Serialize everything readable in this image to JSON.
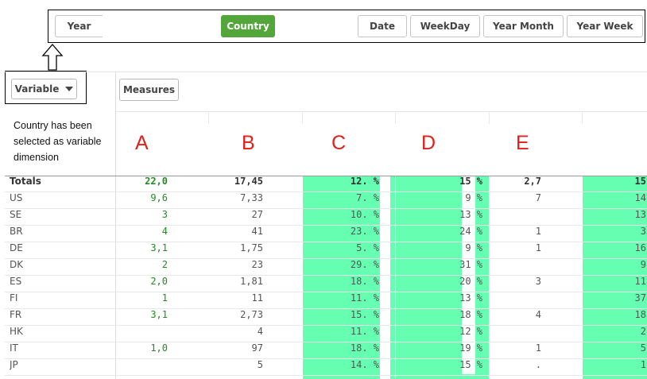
{
  "dimension_bar": {
    "buttons": [
      {
        "label": "Year",
        "active": false
      },
      {
        "label": "Country",
        "active": true
      },
      {
        "label": "Date",
        "active": false
      },
      {
        "label": "WeekDay",
        "active": false
      },
      {
        "label": "Year Month",
        "active": false
      },
      {
        "label": "Year Week",
        "active": false
      }
    ]
  },
  "variable_select": {
    "label": "Variable"
  },
  "measures_button": {
    "label": "Measures"
  },
  "note": "Country has been selected as variable dimension",
  "column_letters": [
    "A",
    "B",
    "C",
    "D",
    "E"
  ],
  "colors": {
    "accent_green": "#52a63a",
    "highlight": "#66ffb2",
    "annotation_red": "#e0201b",
    "value_green": "#238b23"
  },
  "table": {
    "totals": {
      "label": "Totals",
      "a": "22,0",
      "b": "17,45",
      "c": "12.  %",
      "d": "15     %",
      "e": "2,7",
      "f": "15"
    },
    "rows": [
      {
        "label": "US",
        "a": "9,6",
        "b": "7,33",
        "c": "7.  %",
        "d": "9     %",
        "e": "7",
        "f": "14"
      },
      {
        "label": "SE",
        "a": "3",
        "b": "27",
        "c": "10.  %",
        "d": "13     %",
        "e": "",
        "f": "13"
      },
      {
        "label": "BR",
        "a": "4",
        "b": "41",
        "c": "23.  %",
        "d": "24     %",
        "e": "1",
        "f": "3"
      },
      {
        "label": "DE",
        "a": "3,1",
        "b": "1,75",
        "c": "5.  %",
        "d": "9     %",
        "e": "1",
        "f": "16"
      },
      {
        "label": "DK",
        "a": "2",
        "b": "23",
        "c": "29.  %",
        "d": "31     %",
        "e": "",
        "f": "9"
      },
      {
        "label": "ES",
        "a": "2,0",
        "b": "1,81",
        "c": "18.  %",
        "d": "20     %",
        "e": "3",
        "f": "11"
      },
      {
        "label": "FI",
        "a": "1",
        "b": "11",
        "c": "11.  %",
        "d": "13     %",
        "e": "",
        "f": "37"
      },
      {
        "label": "FR",
        "a": "3,1",
        "b": "2,73",
        "c": "15.  %",
        "d": "18     %",
        "e": "4",
        "f": "18"
      },
      {
        "label": "HK",
        "a": "",
        "b": "4",
        "c": "11.  %",
        "d": "12     %",
        "e": "",
        "f": "2"
      },
      {
        "label": "IT",
        "a": "1,0",
        "b": "97",
        "c": "18.  %",
        "d": "19     %",
        "e": "1",
        "f": "5"
      },
      {
        "label": "JP",
        "a": "",
        "b": "5",
        "c": "14.  %",
        "d": "15     %",
        "e": ".",
        "f": "1"
      }
    ]
  }
}
